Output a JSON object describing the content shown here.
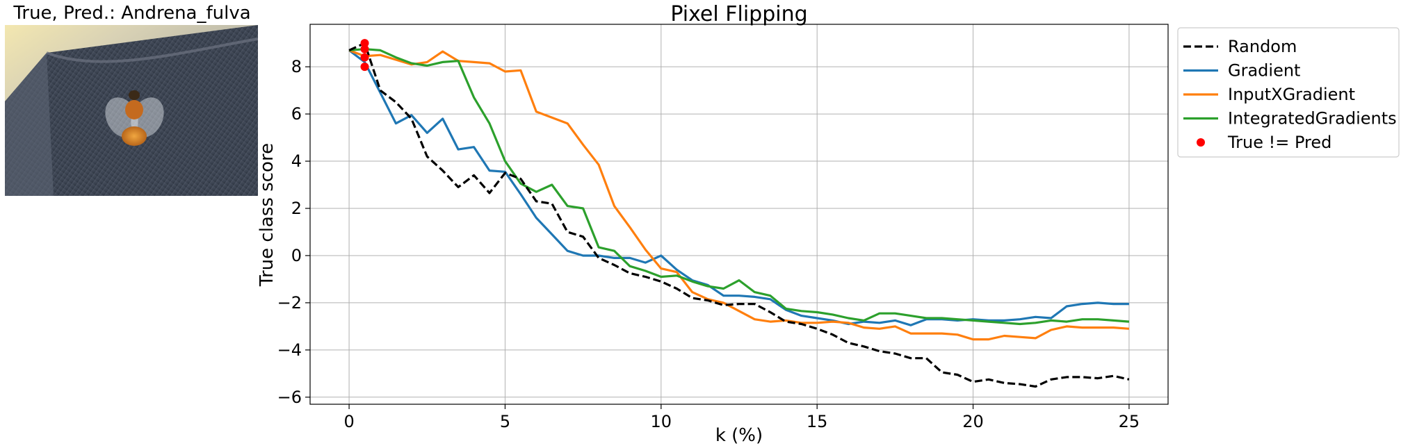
{
  "photo": {
    "title": "True, Pred.: Andrena_fulva"
  },
  "chart_data": {
    "type": "line",
    "title": "Pixel Flipping",
    "xlabel": "k (%)",
    "ylabel": "True class score",
    "xlim": [
      -1.25,
      26.25
    ],
    "ylim": [
      -6.3,
      9.8
    ],
    "xticks": [
      0,
      5,
      10,
      15,
      20,
      25
    ],
    "yticks": [
      -6,
      -4,
      -2,
      0,
      2,
      4,
      6,
      8
    ],
    "grid": true,
    "legend_position": "outside-right-top",
    "x": [
      0,
      0.5,
      1,
      1.5,
      2,
      2.5,
      3,
      3.5,
      4,
      4.5,
      5,
      5.5,
      6,
      6.5,
      7,
      7.5,
      8,
      8.5,
      9,
      9.5,
      10,
      10.5,
      11,
      11.5,
      12,
      12.5,
      13,
      13.5,
      14,
      14.5,
      15,
      15.5,
      16,
      16.5,
      17,
      17.5,
      18,
      18.5,
      19,
      19.5,
      20,
      20.5,
      21,
      21.5,
      22,
      22.5,
      23,
      23.5,
      24,
      24.5,
      25
    ],
    "series": [
      {
        "name": "Random",
        "color": "#000000",
        "dashed": true,
        "values": [
          8.7,
          9.0,
          7.0,
          6.5,
          5.8,
          4.2,
          3.6,
          2.9,
          3.4,
          2.65,
          3.5,
          3.25,
          2.3,
          2.2,
          1.0,
          0.8,
          -0.1,
          -0.4,
          -0.75,
          -0.9,
          -1.1,
          -1.4,
          -1.8,
          -1.9,
          -2.1,
          -2.05,
          -2.05,
          -2.4,
          -2.8,
          -2.9,
          -3.1,
          -3.35,
          -3.7,
          -3.85,
          -4.05,
          -4.15,
          -4.35,
          -4.35,
          -4.95,
          -5.05,
          -5.35,
          -5.25,
          -5.4,
          -5.45,
          -5.55,
          -5.25,
          -5.15,
          -5.15,
          -5.2,
          -5.1,
          -5.25
        ]
      },
      {
        "name": "Gradient",
        "color": "#1f77b4",
        "dashed": false,
        "values": [
          8.7,
          8.2,
          6.9,
          5.6,
          5.95,
          5.2,
          5.8,
          4.5,
          4.6,
          3.6,
          3.55,
          2.6,
          1.6,
          0.9,
          0.2,
          0.0,
          0.0,
          -0.1,
          -0.1,
          -0.3,
          0.0,
          -0.6,
          -1.05,
          -1.25,
          -1.7,
          -1.7,
          -1.75,
          -1.85,
          -2.3,
          -2.55,
          -2.65,
          -2.75,
          -2.9,
          -2.8,
          -2.85,
          -2.75,
          -2.95,
          -2.7,
          -2.7,
          -2.75,
          -2.7,
          -2.75,
          -2.75,
          -2.7,
          -2.6,
          -2.65,
          -2.15,
          -2.05,
          -2.0,
          -2.05,
          -2.05
        ]
      },
      {
        "name": "InputXGradient",
        "color": "#ff7f0e",
        "dashed": false,
        "values": [
          8.7,
          8.45,
          8.5,
          8.3,
          8.1,
          8.2,
          8.65,
          8.25,
          8.2,
          8.15,
          7.8,
          7.85,
          6.1,
          5.85,
          5.6,
          4.7,
          3.85,
          2.1,
          1.2,
          0.25,
          -0.55,
          -0.7,
          -1.55,
          -1.85,
          -2.0,
          -2.35,
          -2.7,
          -2.8,
          -2.75,
          -2.85,
          -2.85,
          -2.8,
          -2.85,
          -3.05,
          -3.1,
          -3.0,
          -3.3,
          -3.3,
          -3.3,
          -3.35,
          -3.55,
          -3.55,
          -3.4,
          -3.45,
          -3.5,
          -3.15,
          -3.0,
          -3.05,
          -3.05,
          -3.05,
          -3.1
        ]
      },
      {
        "name": "IntegratedGradients",
        "color": "#2ca02c",
        "dashed": false,
        "values": [
          8.7,
          8.75,
          8.7,
          8.4,
          8.15,
          8.05,
          8.2,
          8.25,
          6.7,
          5.6,
          4.0,
          3.05,
          2.7,
          3.0,
          2.1,
          2.0,
          0.35,
          0.2,
          -0.45,
          -0.65,
          -0.9,
          -0.85,
          -1.1,
          -1.3,
          -1.4,
          -1.05,
          -1.55,
          -1.7,
          -2.25,
          -2.35,
          -2.4,
          -2.5,
          -2.65,
          -2.75,
          -2.45,
          -2.45,
          -2.55,
          -2.65,
          -2.65,
          -2.7,
          -2.75,
          -2.8,
          -2.85,
          -2.9,
          -2.85,
          -2.75,
          -2.8,
          -2.7,
          -2.7,
          -2.75,
          -2.8
        ]
      }
    ],
    "markers": {
      "name": "True != Pred",
      "color": "#ff0000",
      "points": [
        [
          0.5,
          9.0
        ],
        [
          0.5,
          8.75
        ],
        [
          0.5,
          8.4
        ],
        [
          0.5,
          8.0
        ]
      ]
    }
  }
}
